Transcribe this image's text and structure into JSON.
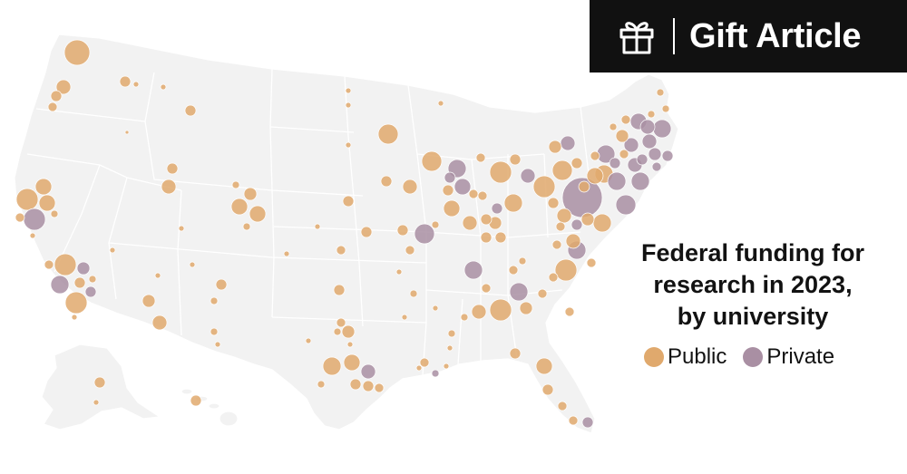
{
  "banner": {
    "label": "Gift Article",
    "icon": "gift-icon"
  },
  "title": {
    "lines": [
      "Federal funding for",
      "research in 2023,",
      "by university"
    ]
  },
  "legend": {
    "items": [
      {
        "label": "Public",
        "color": "#e0a96d"
      },
      {
        "label": "Private",
        "color": "#a98fa3"
      }
    ]
  },
  "colors": {
    "public": "#e0a96d",
    "private": "#a98fa3",
    "land": "#f2f2f2",
    "banner_bg": "#111111"
  },
  "map": {
    "region": "United States",
    "basemap": "state outlines on light gray",
    "encoding": "circle area = federal research funding per university"
  }
}
